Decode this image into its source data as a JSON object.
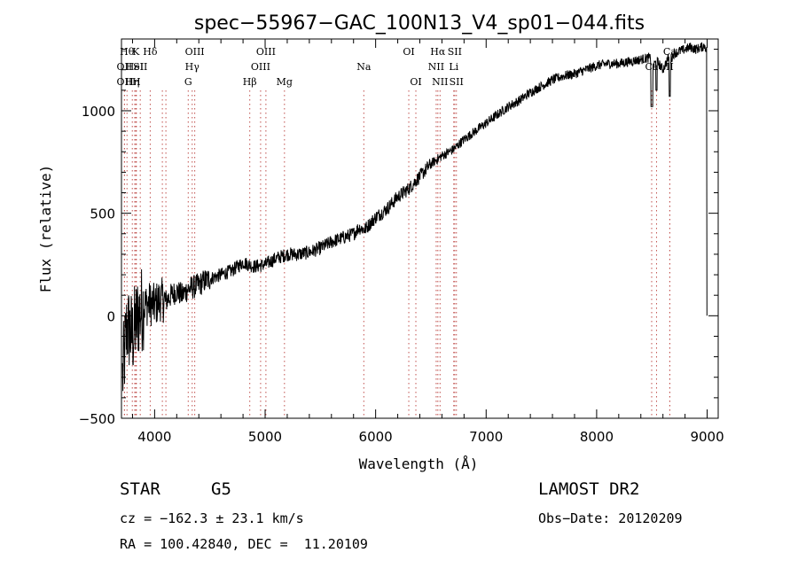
{
  "chart_data": {
    "type": "line",
    "title": "spec−55967−GAC_100N13_V4_sp01−044.fits",
    "xlabel": "Wavelength (Å)",
    "ylabel": "Flux (relative)",
    "xlim": [
      3700,
      9100
    ],
    "ylim": [
      -500,
      1350
    ],
    "xticks": [
      4000,
      5000,
      6000,
      7000,
      8000,
      9000
    ],
    "xtick_labels": [
      "4000",
      "5000",
      "6000",
      "7000",
      "8000",
      "9000"
    ],
    "yticks": [
      -500,
      0,
      500,
      1000
    ],
    "ytick_labels": [
      "−500",
      "0",
      "500",
      "1000"
    ],
    "grid": false,
    "line_color": "#000000",
    "marker_color": "#c0504d",
    "spectrum": {
      "x": [
        3710,
        3750,
        3800,
        3850,
        3900,
        3950,
        4000,
        4050,
        4100,
        4150,
        4200,
        4250,
        4300,
        4350,
        4400,
        4450,
        4500,
        4600,
        4700,
        4800,
        4900,
        5000,
        5100,
        5200,
        5300,
        5400,
        5500,
        5600,
        5700,
        5800,
        5850,
        5900,
        6000,
        6100,
        6200,
        6300,
        6400,
        6500,
        6600,
        6700,
        6800,
        6900,
        7000,
        7100,
        7200,
        7300,
        7400,
        7500,
        7600,
        7700,
        7800,
        7900,
        8000,
        8100,
        8200,
        8300,
        8400,
        8480,
        8500,
        8550,
        8600,
        8650,
        8660,
        8700,
        8750,
        8800,
        8850,
        8900,
        8950,
        8980,
        8990,
        9000
      ],
      "y": [
        -300,
        -50,
        -100,
        0,
        50,
        60,
        50,
        80,
        70,
        100,
        120,
        100,
        130,
        140,
        150,
        170,
        180,
        200,
        220,
        260,
        240,
        250,
        280,
        300,
        300,
        310,
        330,
        360,
        380,
        400,
        430,
        420,
        480,
        520,
        580,
        620,
        680,
        740,
        780,
        810,
        860,
        900,
        940,
        980,
        1020,
        1050,
        1090,
        1120,
        1150,
        1170,
        1180,
        1200,
        1220,
        1230,
        1230,
        1240,
        1250,
        1260,
        1220,
        1240,
        1200,
        1260,
        1240,
        1280,
        1290,
        1300,
        1310,
        1300,
        1310,
        1320,
        1300,
        0
      ]
    },
    "lines": [
      {
        "x": 3750,
        "row": 0,
        "label": "Hθ"
      },
      {
        "x": 3727,
        "row": 1,
        "label": "OII"
      },
      {
        "x": 3727,
        "row": 2,
        "label": "OII"
      },
      {
        "x": 3798,
        "row": 2,
        "label": "Hη"
      },
      {
        "x": 3820,
        "row": 1,
        "label": "HeI"
      },
      {
        "x": 3835,
        "row": 2,
        "label": "H"
      },
      {
        "x": 3830,
        "row": 0,
        "label": "K"
      },
      {
        "x": 3870,
        "row": 1,
        "label": "SII"
      },
      {
        "x": 3960,
        "row": 0,
        "label": "Hδ"
      },
      {
        "x": 4070,
        "row": 1,
        "label": ""
      },
      {
        "x": 4102,
        "row": 0,
        "label": ""
      },
      {
        "x": 4304,
        "row": 2,
        "label": "G"
      },
      {
        "x": 4340,
        "row": 1,
        "label": "Hγ"
      },
      {
        "x": 4363,
        "row": 0,
        "label": "OIII"
      },
      {
        "x": 4861,
        "row": 2,
        "label": "Hβ"
      },
      {
        "x": 4959,
        "row": 1,
        "label": "OIII"
      },
      {
        "x": 5007,
        "row": 0,
        "label": "OIII"
      },
      {
        "x": 5175,
        "row": 2,
        "label": "Mg"
      },
      {
        "x": 5893,
        "row": 1,
        "label": "Na"
      },
      {
        "x": 6300,
        "row": 0,
        "label": "OI"
      },
      {
        "x": 6364,
        "row": 2,
        "label": "OI"
      },
      {
        "x": 6548,
        "row": 1,
        "label": "NII"
      },
      {
        "x": 6563,
        "row": 0,
        "label": "Hα"
      },
      {
        "x": 6583,
        "row": 2,
        "label": "NII"
      },
      {
        "x": 6707,
        "row": 1,
        "label": "Li"
      },
      {
        "x": 6716,
        "row": 0,
        "label": "SII"
      },
      {
        "x": 6731,
        "row": 2,
        "label": "SII"
      },
      {
        "x": 8498,
        "row": 1,
        "label": "Ca"
      },
      {
        "x": 8542,
        "row": 0,
        "label": ""
      },
      {
        "x": 8662,
        "row": 1,
        "label": "II"
      },
      {
        "x": 8662,
        "row": 0,
        "label": "Ca"
      }
    ]
  },
  "info": {
    "object_class": "STAR",
    "subclass": "G5",
    "survey": "LAMOST DR2",
    "redshift_line": "cz = −162.3 ± 23.1 km/s",
    "obs_date_line": "Obs−Date: 20120209",
    "coords_line": "RA = 100.42840, DEC =  11.20109"
  }
}
